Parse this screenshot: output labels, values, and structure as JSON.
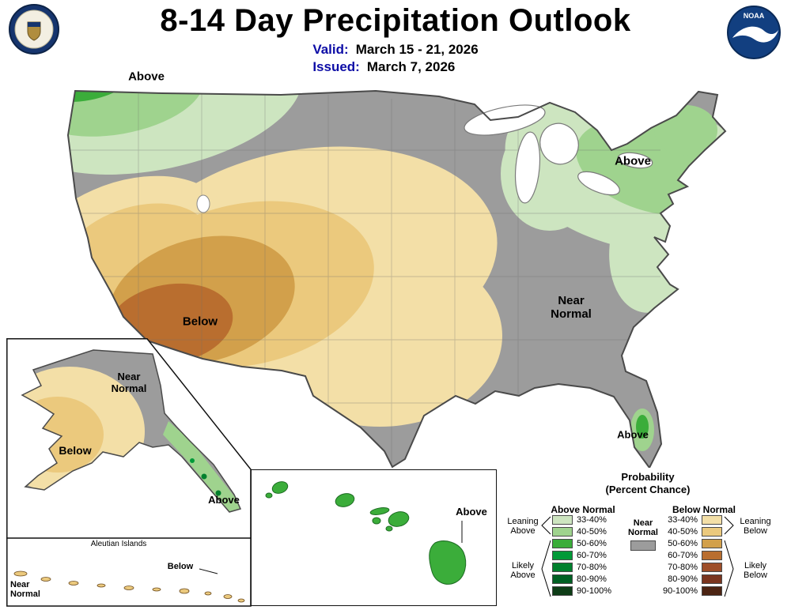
{
  "header": {
    "title": "8-14 Day Precipitation Outlook",
    "valid_label": "Valid:",
    "valid_value": "March 15 - 21, 2026",
    "issued_label": "Issued:",
    "issued_value": "March 7, 2026",
    "noaa_text": "NOAA"
  },
  "map": {
    "labels": {
      "nw_above": "Above",
      "ne_above": "Above",
      "sw_below": "Below",
      "se_near_normal": "Near\nNormal",
      "fl_above": "Above"
    }
  },
  "alaska": {
    "near_normal": "Near\nNormal",
    "below": "Below",
    "above": "Above",
    "aleutian_title": "Aleutian Islands",
    "aleutian_below": "Below",
    "aleutian_near_normal": "Near\nNormal"
  },
  "hawaii": {
    "above": "Above"
  },
  "legend": {
    "title1": "Probability",
    "title2": "(Percent Chance)",
    "above_header": "Above Normal",
    "below_header": "Below Normal",
    "near_normal": "Near\nNormal",
    "leaning_above": "Leaning\nAbove",
    "likely_above": "Likely\nAbove",
    "leaning_below": "Leaning\nBelow",
    "likely_below": "Likely\nBelow",
    "ranges": [
      "33-40%",
      "40-50%",
      "50-60%",
      "60-70%",
      "70-80%",
      "80-90%",
      "90-100%"
    ]
  },
  "colors": {
    "near_normal": "#9c9c9c",
    "above": [
      "#cde5c0",
      "#9fd38e",
      "#3bad3a",
      "#019a38",
      "#00802d",
      "#006023",
      "#0e3d17"
    ],
    "below": [
      "#f3dfa7",
      "#ebc97d",
      "#d2a04b",
      "#b96e2f",
      "#9e4e29",
      "#7a351f",
      "#4c2413"
    ],
    "outline": "#4a4a4a",
    "state_line": "#6e6e6e",
    "navy": "#0d0da6",
    "noaa_blue": "#123f80",
    "doc_blue": "#16356e"
  }
}
